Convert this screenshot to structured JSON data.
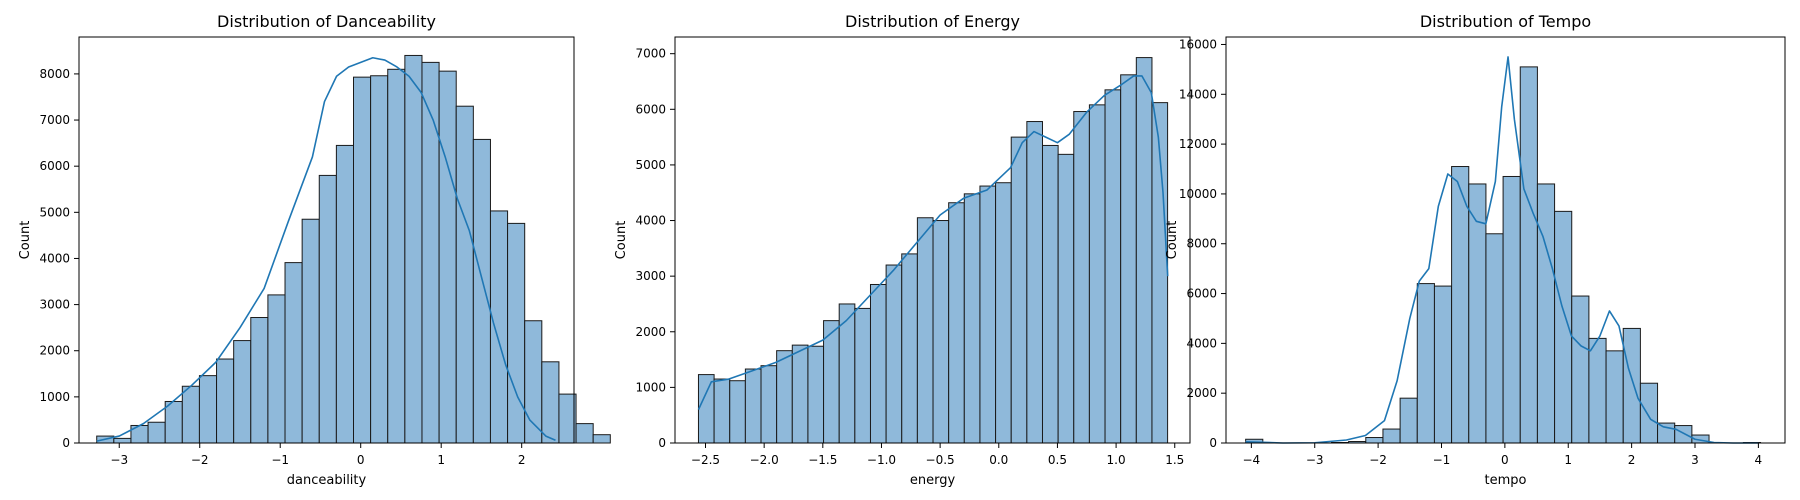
{
  "chart_data": [
    {
      "type": "histogram",
      "title": "Distribution of Danceability",
      "xlabel": "danceability",
      "ylabel": "Count",
      "xlim": [
        -3.5,
        2.65
      ],
      "ylim": [
        0,
        8800
      ],
      "xticks": [
        -3,
        -2,
        -1,
        0,
        1,
        2
      ],
      "yticks": [
        0,
        1000,
        2000,
        3000,
        4000,
        5000,
        6000,
        7000,
        8000
      ],
      "bin_start": -3.28,
      "bin_width": 0.2127,
      "counts": [
        150,
        100,
        380,
        450,
        900,
        1230,
        1460,
        1820,
        2220,
        2720,
        3210,
        3910,
        4850,
        5800,
        6450,
        7930,
        7960,
        8100,
        8400,
        8250,
        8060,
        7300,
        6580,
        5030,
        4760,
        2650,
        1760,
        1060,
        420,
        180
      ],
      "kde_x": [
        -3.28,
        -3.0,
        -2.7,
        -2.4,
        -2.1,
        -1.8,
        -1.5,
        -1.2,
        -0.9,
        -0.6,
        -0.45,
        -0.3,
        -0.15,
        0.0,
        0.15,
        0.3,
        0.45,
        0.6,
        0.75,
        0.9,
        1.05,
        1.2,
        1.35,
        1.5,
        1.65,
        1.8,
        1.95,
        2.1,
        2.3,
        2.42
      ],
      "kde_y": [
        40,
        150,
        420,
        800,
        1250,
        1750,
        2500,
        3350,
        4800,
        6200,
        7400,
        7950,
        8150,
        8250,
        8350,
        8300,
        8150,
        7950,
        7600,
        7000,
        6200,
        5300,
        4600,
        3600,
        2600,
        1700,
        1000,
        500,
        150,
        60
      ]
    },
    {
      "type": "histogram",
      "title": "Distribution of Energy",
      "xlabel": "energy",
      "ylabel": "Count",
      "xlim": [
        -2.76,
        1.63
      ],
      "ylim": [
        0,
        7300
      ],
      "xticks": [
        -2.5,
        -2.0,
        -1.5,
        -1.0,
        -0.5,
        0.0,
        0.5,
        1.0,
        1.5
      ],
      "xtick_labels": [
        "−2.5",
        "−2.0",
        "−1.5",
        "−1.0",
        "−0.5",
        "0.0",
        "0.5",
        "1.0",
        "1.5"
      ],
      "yticks": [
        0,
        1000,
        2000,
        3000,
        4000,
        5000,
        6000,
        7000
      ],
      "bin_start": -2.56,
      "bin_width": 0.1333,
      "counts": [
        1230,
        1150,
        1120,
        1330,
        1390,
        1660,
        1760,
        1740,
        2200,
        2500,
        2420,
        2850,
        3200,
        3400,
        4050,
        4000,
        4320,
        4480,
        4620,
        4680,
        5500,
        5780,
        5350,
        5190,
        5960,
        6080,
        6350,
        6620,
        6930,
        6120
      ],
      "kde_x": [
        -2.56,
        -2.45,
        -2.3,
        -2.1,
        -1.9,
        -1.7,
        -1.5,
        -1.3,
        -1.1,
        -0.9,
        -0.7,
        -0.5,
        -0.3,
        -0.1,
        0.1,
        0.2,
        0.3,
        0.4,
        0.5,
        0.6,
        0.75,
        0.9,
        1.05,
        1.15,
        1.22,
        1.3,
        1.36,
        1.4,
        1.44
      ],
      "kde_y": [
        600,
        1100,
        1150,
        1300,
        1450,
        1650,
        1850,
        2200,
        2650,
        3100,
        3600,
        4100,
        4400,
        4550,
        4950,
        5400,
        5600,
        5500,
        5400,
        5550,
        5950,
        6250,
        6450,
        6600,
        6600,
        6300,
        5500,
        4500,
        3000
      ]
    },
    {
      "type": "histogram",
      "title": "Distribution of Tempo",
      "xlabel": "tempo",
      "ylabel": "Count",
      "xlim": [
        -4.4,
        4.42
      ],
      "ylim": [
        0,
        16300
      ],
      "xticks": [
        -4,
        -3,
        -2,
        -1,
        0,
        1,
        2,
        3,
        4
      ],
      "xtick_labels": [
        "−4",
        "−3",
        "−2",
        "−1",
        "0",
        "1",
        "2",
        "3",
        "4"
      ],
      "yticks": [
        0,
        2000,
        4000,
        6000,
        8000,
        10000,
        12000,
        14000,
        16000
      ],
      "bin_start": -4.09,
      "bin_width": 0.2708,
      "counts": [
        150,
        0,
        0,
        0,
        0,
        20,
        60,
        220,
        560,
        1800,
        6400,
        6300,
        11100,
        10400,
        8400,
        10700,
        15100,
        10400,
        9300,
        5900,
        4200,
        3700,
        4600,
        2400,
        800,
        700,
        320,
        0,
        0,
        20
      ],
      "kde_x": [
        -4.09,
        -3.5,
        -3.0,
        -2.5,
        -2.2,
        -1.9,
        -1.7,
        -1.5,
        -1.35,
        -1.2,
        -1.05,
        -0.9,
        -0.75,
        -0.6,
        -0.45,
        -0.3,
        -0.15,
        -0.05,
        0.05,
        0.15,
        0.3,
        0.45,
        0.6,
        0.75,
        0.9,
        1.05,
        1.2,
        1.35,
        1.5,
        1.65,
        1.8,
        1.95,
        2.1,
        2.3,
        2.5,
        2.7,
        3.0,
        3.3,
        3.6,
        4.0
      ],
      "kde_y": [
        50,
        0,
        10,
        120,
        300,
        900,
        2500,
        5000,
        6500,
        7000,
        9500,
        10800,
        10500,
        9500,
        8900,
        8800,
        10500,
        13500,
        15500,
        13000,
        10200,
        9200,
        8300,
        7000,
        5500,
        4300,
        3900,
        3700,
        4300,
        5300,
        4700,
        3000,
        1800,
        950,
        650,
        550,
        150,
        20,
        0,
        0
      ]
    }
  ]
}
